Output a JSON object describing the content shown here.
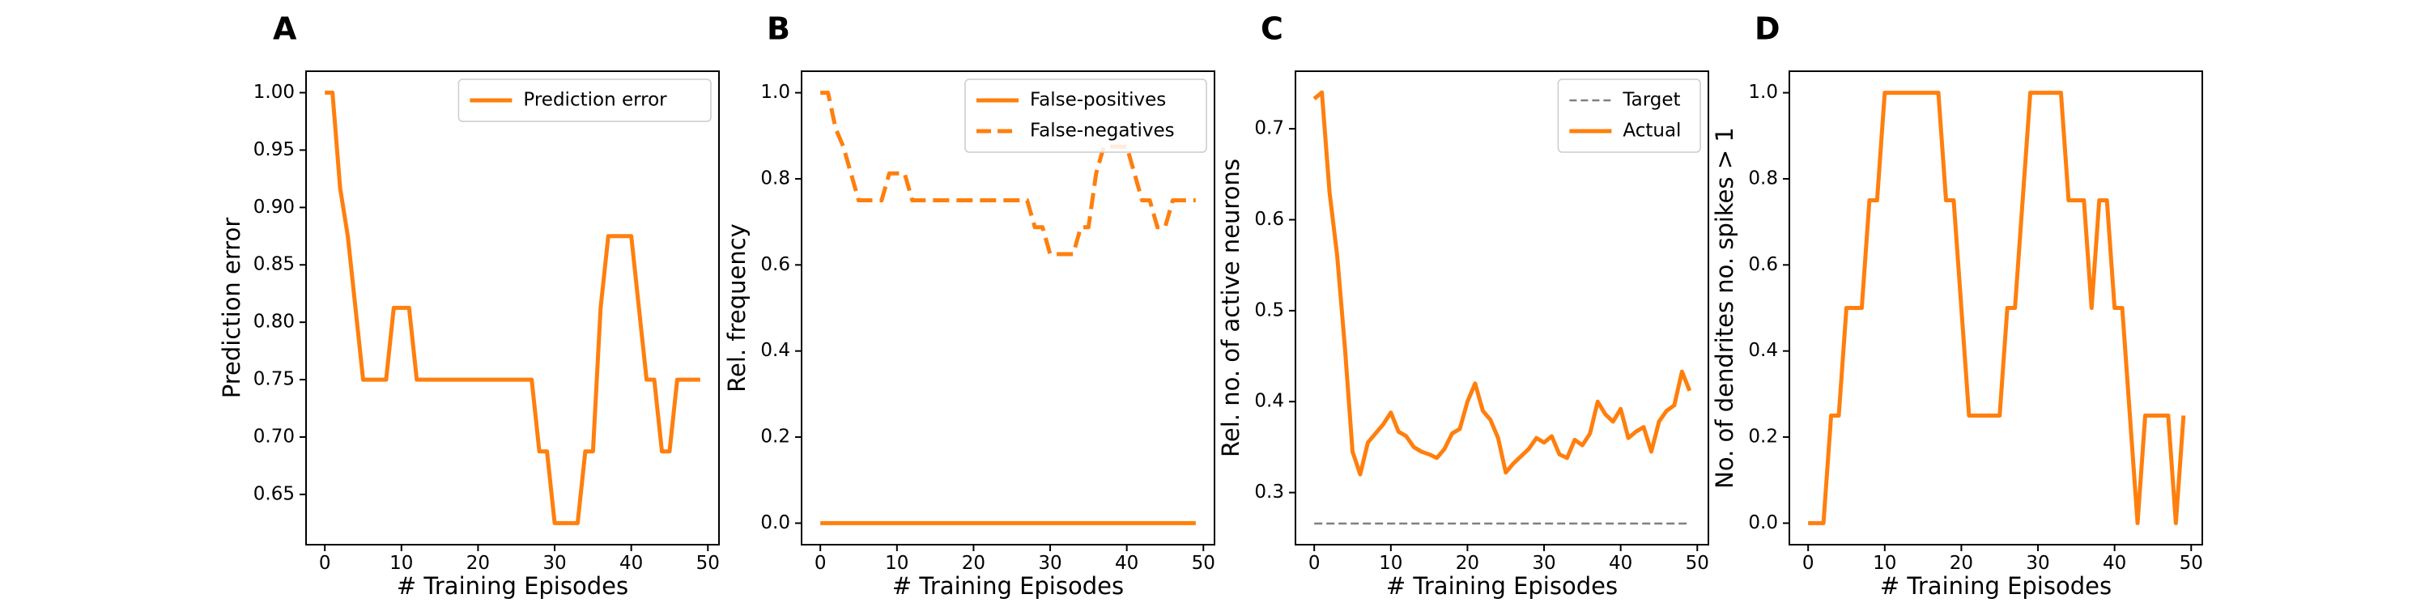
{
  "colors": {
    "series": "#ff7f0e",
    "target": "#808080"
  },
  "chart_data": [
    {
      "panel_letter": "A",
      "type": "line",
      "xlabel": "# Training Episodes",
      "ylabel": "Prediction error",
      "xlim": [
        -2.45,
        51.45
      ],
      "ylim": [
        0.6062,
        1.0187
      ],
      "xticks": [
        0,
        10,
        20,
        30,
        40,
        50
      ],
      "yticks": [
        0.65,
        0.7,
        0.75,
        0.8,
        0.85,
        0.9,
        0.95,
        1.0
      ],
      "ytick_labels": [
        "0.65",
        "0.70",
        "0.75",
        "0.80",
        "0.85",
        "0.90",
        "0.95",
        "1.00"
      ],
      "legend": {
        "position": "upper right"
      },
      "series": [
        {
          "name": "Prediction error",
          "style": "solid",
          "color": "#ff7f0e",
          "x": [
            0,
            1,
            2,
            3,
            4,
            5,
            6,
            7,
            8,
            9,
            10,
            11,
            12,
            13,
            14,
            15,
            16,
            17,
            18,
            19,
            20,
            21,
            22,
            23,
            24,
            25,
            26,
            27,
            28,
            29,
            30,
            31,
            32,
            33,
            34,
            35,
            36,
            37,
            38,
            39,
            40,
            41,
            42,
            43,
            44,
            45,
            46,
            47,
            48,
            49
          ],
          "y": [
            1.0,
            1.0,
            0.9167,
            0.875,
            0.8125,
            0.75,
            0.75,
            0.75,
            0.75,
            0.8125,
            0.8125,
            0.8125,
            0.75,
            0.75,
            0.75,
            0.75,
            0.75,
            0.75,
            0.75,
            0.75,
            0.75,
            0.75,
            0.75,
            0.75,
            0.75,
            0.75,
            0.75,
            0.75,
            0.6875,
            0.6875,
            0.625,
            0.625,
            0.625,
            0.625,
            0.6875,
            0.6875,
            0.8125,
            0.875,
            0.875,
            0.875,
            0.875,
            0.8125,
            0.75,
            0.75,
            0.6875,
            0.6875,
            0.75,
            0.75,
            0.75,
            0.75
          ]
        }
      ]
    },
    {
      "panel_letter": "B",
      "type": "line",
      "xlabel": "# Training Episodes",
      "ylabel": "Rel. frequency",
      "xlim": [
        -2.45,
        51.45
      ],
      "ylim": [
        -0.05,
        1.05
      ],
      "xticks": [
        0,
        10,
        20,
        30,
        40,
        50
      ],
      "yticks": [
        0.0,
        0.2,
        0.4,
        0.6,
        0.8,
        1.0
      ],
      "ytick_labels": [
        "0.0",
        "0.2",
        "0.4",
        "0.6",
        "0.8",
        "1.0"
      ],
      "legend": {
        "position": "upper right"
      },
      "series": [
        {
          "name": "False-positives",
          "style": "solid",
          "color": "#ff7f0e",
          "x": [
            0,
            49
          ],
          "y": [
            0.0,
            0.0
          ]
        },
        {
          "name": "False-negatives",
          "style": "dashed",
          "color": "#ff7f0e",
          "x": [
            0,
            1,
            2,
            3,
            4,
            5,
            6,
            7,
            8,
            9,
            10,
            11,
            12,
            13,
            14,
            15,
            16,
            17,
            18,
            19,
            20,
            21,
            22,
            23,
            24,
            25,
            26,
            27,
            28,
            29,
            30,
            31,
            32,
            33,
            34,
            35,
            36,
            37,
            38,
            39,
            40,
            41,
            42,
            43,
            44,
            45,
            46,
            47,
            48,
            49
          ],
          "y": [
            1.0,
            1.0,
            0.9167,
            0.875,
            0.8125,
            0.75,
            0.75,
            0.75,
            0.75,
            0.8125,
            0.8125,
            0.8125,
            0.75,
            0.75,
            0.75,
            0.75,
            0.75,
            0.75,
            0.75,
            0.75,
            0.75,
            0.75,
            0.75,
            0.75,
            0.75,
            0.75,
            0.75,
            0.75,
            0.6875,
            0.6875,
            0.625,
            0.625,
            0.625,
            0.625,
            0.6875,
            0.6875,
            0.8125,
            0.875,
            0.875,
            0.875,
            0.875,
            0.8125,
            0.75,
            0.75,
            0.6875,
            0.6875,
            0.75,
            0.75,
            0.75,
            0.75
          ]
        }
      ]
    },
    {
      "panel_letter": "C",
      "type": "line",
      "xlabel": "# Training Episodes",
      "ylabel": "Rel. no. of active neurons",
      "xlim": [
        -2.45,
        51.45
      ],
      "ylim": [
        0.2427,
        0.7633
      ],
      "xticks": [
        0,
        10,
        20,
        30,
        40,
        50
      ],
      "yticks": [
        0.3,
        0.4,
        0.5,
        0.6,
        0.7
      ],
      "ytick_labels": [
        "0.3",
        "0.4",
        "0.5",
        "0.6",
        "0.7"
      ],
      "legend": {
        "position": "upper right"
      },
      "series": [
        {
          "name": "Target",
          "style": "dashed-thin",
          "color": "#808080",
          "x": [
            0,
            49
          ],
          "y": [
            0.266,
            0.266
          ]
        },
        {
          "name": "Actual",
          "style": "solid",
          "color": "#ff7f0e",
          "x": [
            0,
            1,
            2,
            3,
            4,
            5,
            6,
            7,
            8,
            9,
            10,
            11,
            12,
            13,
            14,
            15,
            16,
            17,
            18,
            19,
            20,
            21,
            22,
            23,
            24,
            25,
            26,
            27,
            28,
            29,
            30,
            31,
            32,
            33,
            34,
            35,
            36,
            37,
            38,
            39,
            40,
            41,
            42,
            43,
            44,
            45,
            46,
            47,
            48,
            49
          ],
          "y": [
            0.733,
            0.74,
            0.63,
            0.56,
            0.46,
            0.345,
            0.32,
            0.355,
            0.365,
            0.375,
            0.388,
            0.367,
            0.362,
            0.35,
            0.345,
            0.342,
            0.338,
            0.348,
            0.365,
            0.37,
            0.4,
            0.42,
            0.39,
            0.38,
            0.36,
            0.322,
            0.332,
            0.34,
            0.348,
            0.36,
            0.355,
            0.362,
            0.342,
            0.338,
            0.358,
            0.352,
            0.365,
            0.4,
            0.386,
            0.378,
            0.392,
            0.36,
            0.367,
            0.372,
            0.345,
            0.378,
            0.39,
            0.396,
            0.433,
            0.412
          ]
        }
      ]
    },
    {
      "panel_letter": "D",
      "type": "line",
      "xlabel": "# Training Episodes",
      "ylabel": "No. of dendrites no. spikes > 1",
      "xlim": [
        -2.45,
        51.45
      ],
      "ylim": [
        -0.05,
        1.05
      ],
      "xticks": [
        0,
        10,
        20,
        30,
        40,
        50
      ],
      "yticks": [
        0.0,
        0.2,
        0.4,
        0.6,
        0.8,
        1.0
      ],
      "ytick_labels": [
        "0.0",
        "0.2",
        "0.4",
        "0.6",
        "0.8",
        "1.0"
      ],
      "legend": null,
      "series": [
        {
          "name": "",
          "style": "solid",
          "color": "#ff7f0e",
          "x": [
            0,
            1,
            2,
            3,
            4,
            5,
            6,
            7,
            8,
            9,
            10,
            11,
            12,
            13,
            14,
            15,
            16,
            17,
            18,
            19,
            20,
            21,
            22,
            23,
            24,
            25,
            26,
            27,
            28,
            29,
            30,
            31,
            32,
            33,
            34,
            35,
            36,
            37,
            38,
            39,
            40,
            41,
            42,
            43,
            44,
            45,
            46,
            47,
            48,
            49
          ],
          "y": [
            0,
            0,
            0,
            0.25,
            0.25,
            0.5,
            0.5,
            0.5,
            0.75,
            0.75,
            1.0,
            1.0,
            1.0,
            1.0,
            1.0,
            1.0,
            1.0,
            1.0,
            0.75,
            0.75,
            0.5,
            0.25,
            0.25,
            0.25,
            0.25,
            0.25,
            0.5,
            0.5,
            0.75,
            1.0,
            1.0,
            1.0,
            1.0,
            1.0,
            0.75,
            0.75,
            0.75,
            0.5,
            0.75,
            0.75,
            0.5,
            0.5,
            0.25,
            0,
            0.25,
            0.25,
            0.25,
            0.25,
            0,
            0.25
          ]
        }
      ]
    }
  ]
}
